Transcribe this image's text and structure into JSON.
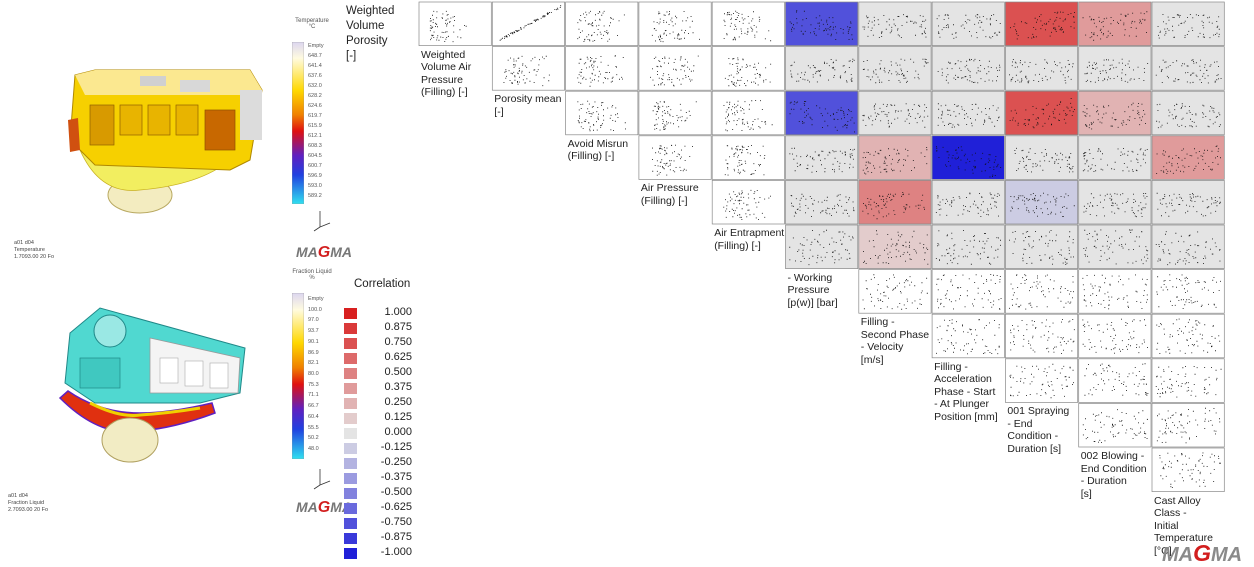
{
  "sim_top": {
    "scale_title": "Temperature\n°C",
    "scale_labels": [
      "Empty",
      "648.7",
      "641.4",
      "637.6",
      "632.0",
      "628.2",
      "624.6",
      "619.7",
      "615.9",
      "612.1",
      "608.3",
      "604.5",
      "600.7",
      "596.9",
      "593.0",
      "589.2"
    ],
    "meta": "a01 d04\nTemperature\n1.7093.00 20 Fo",
    "logo": "MAGMA"
  },
  "sim_bottom": {
    "scale_title": "Fraction Liquid\n%",
    "scale_labels": [
      "Empty",
      "100.0",
      "97.0",
      "93.7",
      "90.1",
      "86.9",
      "82.1",
      "80.0",
      "75.3",
      "71.1",
      "66.7",
      "60.4",
      "55.5",
      "50.2",
      "48.0"
    ],
    "meta": "a01 d04\nFraction Liquid\n2.7093.00 20 Fo",
    "logo": "MAGMA"
  },
  "colors": {
    "corr_pos": "#d82020",
    "corr_neg": "#2020d8",
    "neutral": "#e4e4e4"
  },
  "first_label": "Weighted\nVolume\nPorosity\n[-]",
  "legend": {
    "title": "Correlation",
    "entries": [
      "1.000",
      "0.875",
      "0.750",
      "0.625",
      "0.500",
      "0.375",
      "0.250",
      "0.125",
      "0.000",
      "-0.125",
      "-0.250",
      "-0.375",
      "-0.500",
      "-0.625",
      "-0.750",
      "-0.875",
      "-1.000"
    ],
    "values": [
      1.0,
      0.875,
      0.75,
      0.625,
      0.5,
      0.375,
      0.25,
      0.125,
      0.0,
      -0.125,
      -0.25,
      -0.375,
      -0.5,
      -0.625,
      -0.75,
      -0.875,
      -1.0
    ]
  },
  "chart_data": {
    "type": "scatter",
    "variables": [
      "Weighted Volume Porosity [-]",
      "Weighted Volume Air Pressure (Filling) [-]",
      "Porosity mean [-]",
      "Avoid Misrun (Filling) [-]",
      "Air Pressure (Filling) [-]",
      "Air Entrapment (Filling) [-]",
      "- Working Pressure [p(w)] [bar]",
      "Filling - Second Phase - Velocity [m/s]",
      "Filling - Acceleration Phase - Start - At Plunger Position [mm]",
      "001 Spraying - End Condition - Duration [s]",
      "002 Blowing - End Condition - Duration [s]",
      "Cast Alloy Class - Initial Temperature [°C]"
    ],
    "diagonal_labels": [
      "Weighted\nVolume Air\nPressure\n(Filling) [-]",
      "Porosity mean\n[-]",
      "Avoid Misrun\n(Filling) [-]",
      "Air Pressure\n(Filling) [-]",
      "Air Entrapment\n(Filling) [-]",
      "- Working\nPressure\n[p(w)] [bar]",
      "Filling -\nSecond Phase\n- Velocity\n[m/s]",
      "Filling -\nAcceleration\nPhase - Start\n- At Plunger\nPosition [mm]",
      "001 Spraying\n- End\nCondition -\nDuration [s]",
      "002 Blowing -\nEnd Condition\n- Duration\n[s]",
      "Cast Alloy\nClass -\nInitial\nTemperature\n[°C]"
    ],
    "correlation_rows": [
      [
        null,
        null,
        null,
        null,
        null,
        -0.75,
        0.0,
        0.0,
        0.75,
        0.375,
        0.0
      ],
      [
        null,
        null,
        null,
        null,
        null,
        0.0,
        0.0,
        0.0,
        0.0,
        0.0,
        0.0
      ],
      [
        null,
        null,
        null,
        null,
        null,
        -0.75,
        0.0,
        0.0,
        0.75,
        0.25,
        0.0
      ],
      [
        null,
        null,
        null,
        null,
        null,
        0.0,
        0.25,
        -1.0,
        0.0,
        0.0,
        0.375
      ],
      [
        null,
        null,
        null,
        null,
        null,
        0.0,
        0.5,
        0.0,
        -0.125,
        0.0,
        0.0
      ],
      [
        null,
        null,
        null,
        null,
        null,
        0.0,
        0.125,
        0.0,
        0.0,
        0.0,
        0.0
      ],
      [
        null,
        null,
        null,
        null,
        null,
        null,
        null,
        null,
        null,
        null,
        null
      ],
      [
        null,
        null,
        null,
        null,
        null,
        null,
        null,
        null,
        null,
        null,
        null
      ],
      [
        null,
        null,
        null,
        null,
        null,
        null,
        null,
        null,
        null,
        null,
        null
      ],
      [
        null,
        null,
        null,
        null,
        null,
        null,
        null,
        null,
        null,
        null,
        null
      ],
      [
        null,
        null,
        null,
        null,
        null,
        null,
        null,
        null,
        null,
        null,
        null
      ]
    ],
    "legend_range": [
      -1.0,
      1.0
    ],
    "grid": false
  },
  "logo_main": "MAGMA"
}
